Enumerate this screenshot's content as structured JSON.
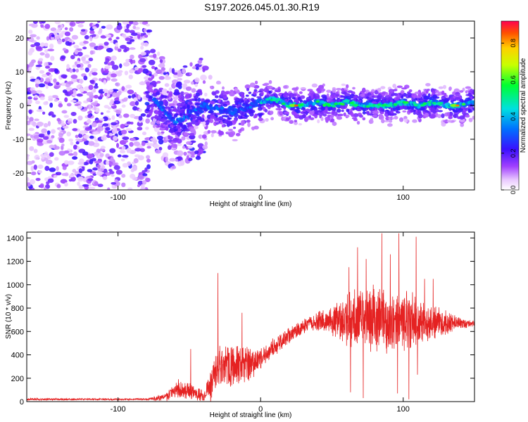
{
  "title": "S197.2026.045.01.30.R19",
  "colors": {
    "snr_line": "#e52222",
    "axis": "#000000",
    "background": "#ffffff"
  },
  "chart_data": [
    {
      "type": "heatmap",
      "name": "spectrogram",
      "xlabel": "Height of straight line (km)",
      "ylabel": "Frequency (Hz)",
      "xlim": [
        -164,
        150
      ],
      "ylim": [
        -25,
        25
      ],
      "xticks": [
        -100,
        0,
        100
      ],
      "yticks": [
        -20,
        -10,
        0,
        10,
        20
      ],
      "xtick_labels": [
        "-100",
        "0",
        "100"
      ],
      "ytick_labels": [
        "-20",
        "-10",
        "0",
        "10",
        "20"
      ],
      "colorbar": {
        "label": "Normalized spectral amplitude",
        "range": [
          0,
          0.92
        ],
        "ticks": [
          0.0,
          0.2,
          0.4,
          0.6,
          0.8
        ],
        "tick_labels": [
          "0.0",
          "0.2",
          "0.4",
          "0.6",
          "0.8"
        ],
        "colormap": "rainbow"
      },
      "ridge": {
        "description_points_x": [
          -75,
          -60,
          -40,
          -20,
          0,
          10,
          20,
          30,
          40,
          50,
          60,
          70,
          80,
          90,
          100,
          110,
          120,
          130,
          140,
          148
        ],
        "description_points_y": [
          2,
          -5,
          0,
          -2,
          1,
          2,
          0,
          0,
          1,
          0,
          1,
          0,
          0,
          0,
          1,
          0,
          1,
          0,
          0,
          1
        ]
      },
      "peak_locations": [
        {
          "x": 25,
          "y": 0,
          "value": 0.92
        },
        {
          "x": 138,
          "y": 0,
          "value": 0.9
        }
      ]
    },
    {
      "type": "line",
      "name": "snr",
      "xlabel": "Height of straight line (km)",
      "ylabel": "SNR (10 * v/v)",
      "xlim": [
        -164,
        150
      ],
      "ylim": [
        0,
        1450
      ],
      "xticks": [
        -100,
        0,
        100
      ],
      "yticks": [
        0,
        200,
        400,
        600,
        800,
        1000,
        1200,
        1400
      ],
      "xtick_labels": [
        "-100",
        "0",
        "100"
      ],
      "ytick_labels": [
        "0",
        "200",
        "400",
        "600",
        "800",
        "1000",
        "1200",
        "1400"
      ],
      "envelope": {
        "x": [
          -164,
          -80,
          -66,
          -58,
          -50,
          -40,
          -34,
          -30,
          -20,
          -10,
          0,
          10,
          20,
          30,
          40,
          50,
          60,
          70,
          80,
          90,
          100,
          110,
          120,
          130,
          140,
          150
        ],
        "mean": [
          20,
          20,
          40,
          120,
          90,
          40,
          160,
          270,
          320,
          320,
          370,
          470,
          570,
          640,
          680,
          700,
          700,
          700,
          700,
          690,
          690,
          680,
          680,
          680,
          670,
          670
        ],
        "amplitude": [
          10,
          8,
          40,
          90,
          80,
          60,
          200,
          230,
          200,
          180,
          110,
          90,
          80,
          70,
          90,
          140,
          260,
          300,
          330,
          320,
          300,
          250,
          160,
          110,
          60,
          30
        ]
      },
      "spikes": [
        {
          "x": -30,
          "y": 1100
        },
        {
          "x": -13,
          "y": 760
        },
        {
          "x": -49,
          "y": 450
        },
        {
          "x": 62,
          "y": 1150
        },
        {
          "x": 68,
          "y": 1320
        },
        {
          "x": 74,
          "y": 1220
        },
        {
          "x": 79,
          "y": 1000
        },
        {
          "x": 85,
          "y": 1440
        },
        {
          "x": 91,
          "y": 1260
        },
        {
          "x": 97,
          "y": 1440
        },
        {
          "x": 104,
          "y": 1190
        },
        {
          "x": 109,
          "y": 1410
        },
        {
          "x": 115,
          "y": 1050
        },
        {
          "x": 121,
          "y": 1050
        }
      ],
      "dips": [
        {
          "x": 63,
          "y": 80
        },
        {
          "x": 72,
          "y": 30
        },
        {
          "x": 96,
          "y": 70
        },
        {
          "x": 104,
          "y": 20
        },
        {
          "x": 110,
          "y": 230
        }
      ]
    }
  ]
}
